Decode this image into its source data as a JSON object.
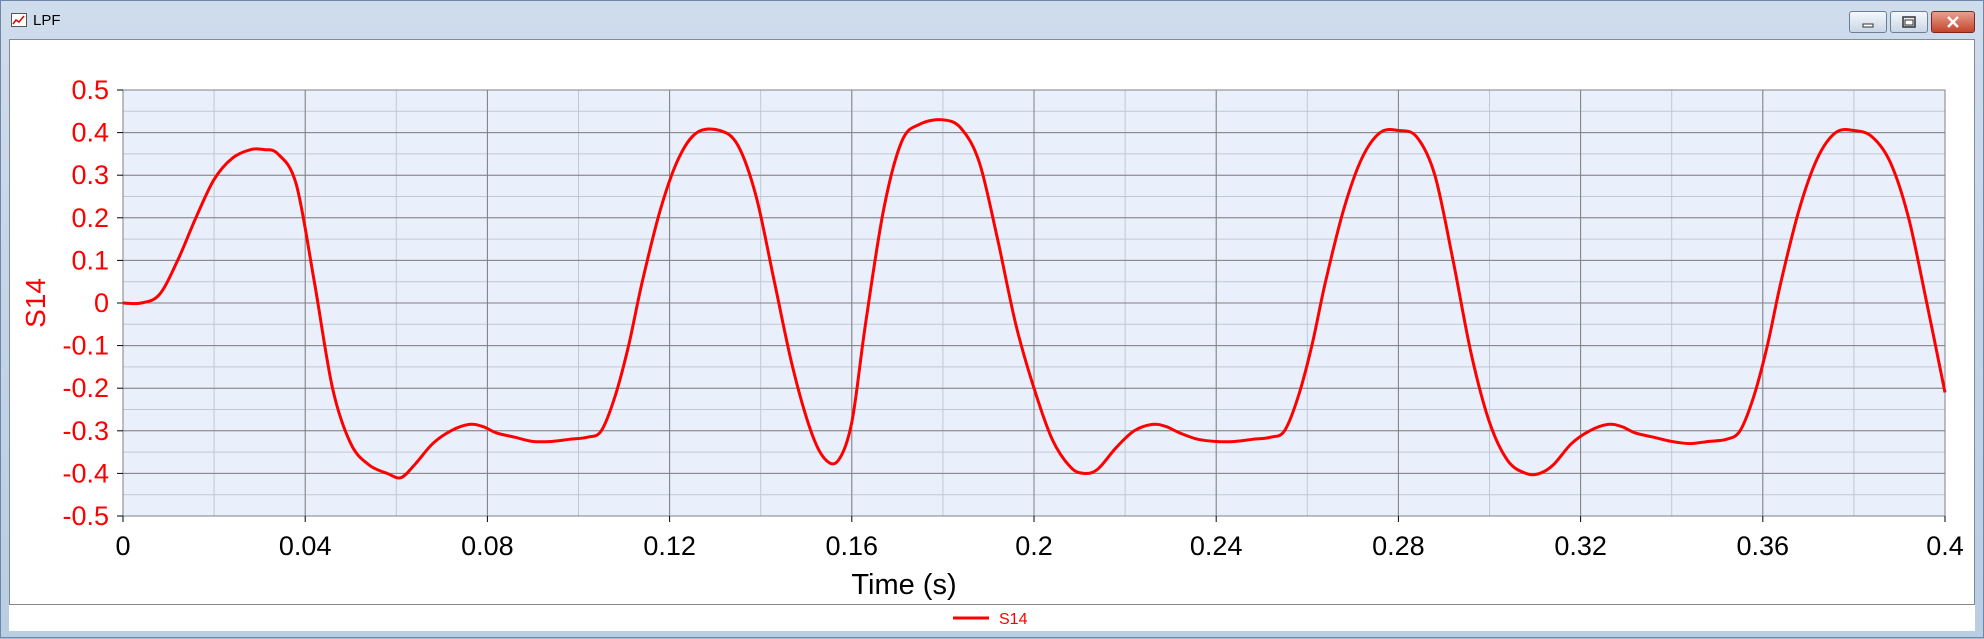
{
  "window": {
    "title": "LPF"
  },
  "controls": {
    "minimize": "minimize",
    "maximize": "maximize",
    "close": "close"
  },
  "chart_data": {
    "type": "line",
    "title": "",
    "xlabel": "Time (s)",
    "ylabel": "S14",
    "xlim": [
      0,
      0.4
    ],
    "ylim": [
      -0.5,
      0.5
    ],
    "xticks": [
      0,
      0.04,
      0.08,
      0.12,
      0.16,
      0.2,
      0.24,
      0.28,
      0.32,
      0.36,
      0.4
    ],
    "xtick_labels": [
      "0",
      "0.04",
      "0.08",
      "0.12",
      "0.16",
      "0.2",
      "0.24",
      "0.28",
      "0.32",
      "0.36",
      "0.4"
    ],
    "yticks": [
      0.5,
      0.4,
      0.3,
      0.2,
      0.1,
      0,
      -0.1,
      -0.2,
      -0.3,
      -0.4,
      -0.5
    ],
    "ytick_labels": [
      "0.5",
      "0.4",
      "0.3",
      "0.2",
      "0.1",
      "0",
      "-0.1",
      "-0.2",
      "-0.3",
      "-0.4",
      "-0.5"
    ],
    "grid": true,
    "legend": "bottom-center",
    "colors": {
      "series": "#ff0000",
      "plot_bg": "#eaf0fb",
      "grid_major": "#808080",
      "grid_minor": "#c0c8d4",
      "text": "#ff0000"
    },
    "series": [
      {
        "name": "S14",
        "x": [
          0,
          0.004,
          0.008,
          0.012,
          0.016,
          0.02,
          0.024,
          0.028,
          0.031,
          0.034,
          0.038,
          0.042,
          0.046,
          0.05,
          0.054,
          0.058,
          0.061,
          0.064,
          0.068,
          0.072,
          0.076,
          0.079,
          0.082,
          0.086,
          0.09,
          0.094,
          0.098,
          0.102,
          0.105,
          0.108,
          0.111,
          0.114,
          0.118,
          0.122,
          0.126,
          0.131,
          0.135,
          0.139,
          0.143,
          0.147,
          0.151,
          0.154,
          0.157,
          0.16,
          0.163,
          0.167,
          0.171,
          0.175,
          0.18,
          0.184,
          0.188,
          0.192,
          0.196,
          0.2,
          0.204,
          0.208,
          0.211,
          0.214,
          0.218,
          0.222,
          0.226,
          0.229,
          0.232,
          0.236,
          0.24,
          0.244,
          0.248,
          0.252,
          0.255,
          0.258,
          0.261,
          0.264,
          0.268,
          0.272,
          0.276,
          0.28,
          0.284,
          0.288,
          0.292,
          0.296,
          0.3,
          0.304,
          0.308,
          0.311,
          0.314,
          0.318,
          0.322,
          0.326,
          0.329,
          0.332,
          0.336,
          0.34,
          0.344,
          0.348,
          0.352,
          0.355,
          0.358,
          0.361,
          0.364,
          0.368,
          0.372,
          0.376,
          0.38,
          0.384,
          0.388,
          0.392,
          0.396,
          0.4
        ],
        "y": [
          0,
          0.0,
          0.02,
          0.1,
          0.2,
          0.29,
          0.34,
          0.36,
          0.36,
          0.35,
          0.28,
          0.05,
          -0.2,
          -0.33,
          -0.38,
          -0.4,
          -0.41,
          -0.38,
          -0.33,
          -0.3,
          -0.285,
          -0.29,
          -0.305,
          -0.315,
          -0.325,
          -0.325,
          -0.32,
          -0.315,
          -0.3,
          -0.22,
          -0.1,
          0.05,
          0.22,
          0.34,
          0.4,
          0.405,
          0.37,
          0.25,
          0.05,
          -0.15,
          -0.3,
          -0.365,
          -0.37,
          -0.28,
          -0.05,
          0.22,
          0.38,
          0.42,
          0.43,
          0.41,
          0.33,
          0.15,
          -0.05,
          -0.2,
          -0.32,
          -0.385,
          -0.4,
          -0.39,
          -0.34,
          -0.3,
          -0.285,
          -0.29,
          -0.305,
          -0.32,
          -0.325,
          -0.325,
          -0.32,
          -0.315,
          -0.3,
          -0.22,
          -0.1,
          0.05,
          0.22,
          0.34,
          0.4,
          0.405,
          0.39,
          0.3,
          0.1,
          -0.12,
          -0.28,
          -0.37,
          -0.4,
          -0.4,
          -0.38,
          -0.33,
          -0.3,
          -0.285,
          -0.29,
          -0.305,
          -0.315,
          -0.325,
          -0.33,
          -0.325,
          -0.32,
          -0.3,
          -0.22,
          -0.1,
          0.05,
          0.22,
          0.34,
          0.4,
          0.405,
          0.39,
          0.33,
          0.2,
          0.0,
          -0.21
        ]
      }
    ]
  }
}
